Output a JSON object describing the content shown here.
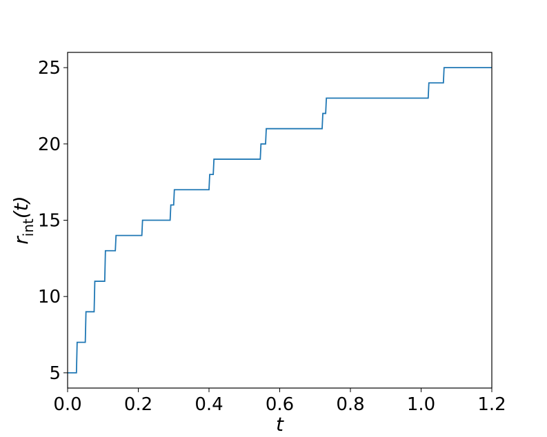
{
  "chart_data": {
    "type": "line",
    "step": true,
    "xlabel": "t",
    "ylabel_main": "r",
    "ylabel_sub": "int",
    "ylabel_arg": "(t)",
    "xlim": [
      0.0,
      1.2
    ],
    "ylim": [
      4.0,
      26.0
    ],
    "xticks": [
      "0.0",
      "0.2",
      "0.4",
      "0.6",
      "0.8",
      "1.0",
      "1.2"
    ],
    "xtick_values": [
      0.0,
      0.2,
      0.4,
      0.6,
      0.8,
      1.0,
      1.2
    ],
    "yticks": [
      "5",
      "10",
      "15",
      "20",
      "25"
    ],
    "ytick_values": [
      5,
      10,
      15,
      20,
      25
    ],
    "grid": false,
    "line_color": "#1f77b4",
    "series": [
      {
        "x": [
          0.0,
          0.025,
          0.027,
          0.05,
          0.052,
          0.075,
          0.077,
          0.105,
          0.107,
          0.135,
          0.137,
          0.21,
          0.212,
          0.29,
          0.292,
          0.3,
          0.302,
          0.4,
          0.402,
          0.412,
          0.414,
          0.545,
          0.547,
          0.56,
          0.562,
          0.72,
          0.722,
          0.73,
          0.732,
          1.02,
          1.022,
          1.063,
          1.065,
          1.2
        ],
        "y": [
          5,
          5,
          7,
          7,
          9,
          9,
          11,
          11,
          13,
          13,
          14,
          14,
          15,
          15,
          16,
          16,
          17,
          17,
          18,
          18,
          19,
          19,
          20,
          20,
          21,
          21,
          22,
          22,
          23,
          23,
          24,
          24,
          25,
          25
        ]
      }
    ]
  }
}
